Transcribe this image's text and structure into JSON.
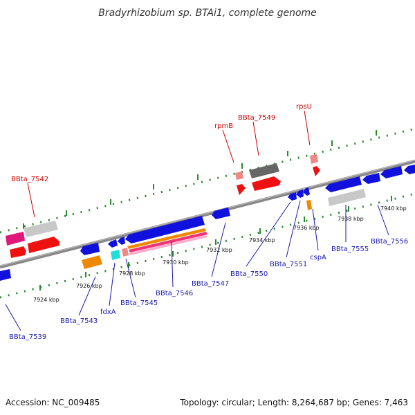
{
  "title": "Bradyrhizobium sp. BTAi1, complete genome",
  "footer": {
    "accession": "Accession: NC_009485",
    "topology": "Topology: circular; Length: 8,264,687 bp; Genes: 7,463"
  },
  "tick_labels": [
    "7924 kbp",
    "7926 kbp",
    "7928 kbp",
    "7930 kbp",
    "7932 kbp",
    "7934 kbp",
    "7936 kbp",
    "7938 kbp",
    "7940 kbp"
  ],
  "gene_labels_top": [
    "BBta_7542",
    "rpmB",
    "BBta_7549",
    "rpsU"
  ],
  "gene_labels_bottom": [
    "BBta_7539",
    "BBta_7543",
    "fdxA",
    "BBta_7545",
    "BBta_7546",
    "BBta_7547",
    "BBta_7550",
    "BBta_7551",
    "cspA",
    "BBta_7555",
    "BBta_7556"
  ],
  "colors": {
    "backbone": "#888888",
    "tick": "#2a8a2a",
    "red_label": "#cc0000",
    "blue_label": "#1a1aaa"
  }
}
